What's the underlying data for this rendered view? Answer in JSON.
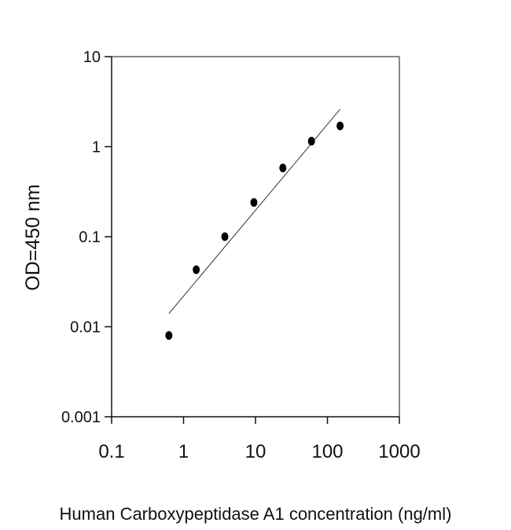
{
  "chart_data": {
    "type": "scatter",
    "title": "",
    "xlabel": "Human Carboxypeptidase A1 concentration (ng/ml)",
    "ylabel": "OD=450 nm",
    "x_scale": "log",
    "y_scale": "log",
    "xlim": [
      0.1,
      1000
    ],
    "ylim": [
      0.001,
      10
    ],
    "x_ticks": [
      "0.1",
      "1",
      "10",
      "100",
      "1000"
    ],
    "y_ticks": [
      "0.001",
      "0.01",
      "0.1",
      "1",
      "10"
    ],
    "grid": false,
    "legend": "none",
    "colors": {
      "points": "#000000",
      "line": "#333333",
      "axes": "#111111"
    },
    "series": [
      {
        "type": "scatter",
        "x": [
          0.625,
          1.5,
          3.75,
          9.5,
          24,
          60,
          150
        ],
        "y": [
          0.008,
          0.043,
          0.1,
          0.24,
          0.58,
          1.15,
          1.7
        ]
      },
      {
        "type": "line",
        "x": [
          0.625,
          150
        ],
        "y": [
          0.014,
          2.6
        ]
      }
    ]
  }
}
